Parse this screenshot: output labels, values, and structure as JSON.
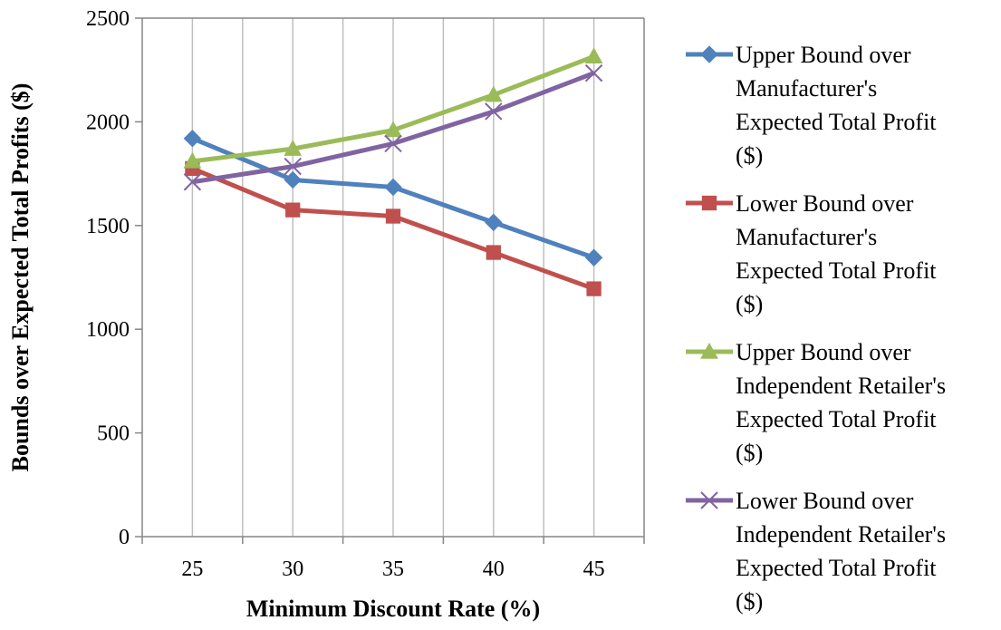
{
  "chart_data": {
    "type": "line",
    "title": "",
    "xlabel": "Minimum Discount Rate (%)",
    "ylabel": "Bounds over Expected Total Profits ($)",
    "x": [
      25,
      30,
      35,
      40,
      45
    ],
    "x_tick_labels": [
      "25",
      "30",
      "35",
      "40",
      "45"
    ],
    "ylim": [
      0,
      2500
    ],
    "y_ticks": [
      0,
      500,
      1000,
      1500,
      2000,
      2500
    ],
    "y_tick_labels": [
      "0",
      "500",
      "1000",
      "1500",
      "2000",
      "2500"
    ],
    "grid": "vertical",
    "legend_position": "right",
    "series": [
      {
        "name": "Upper Bound over Manufacturer's Expected Total Profit ($)",
        "legend_lines": [
          "Upper Bound over",
          "Manufacturer's",
          "Expected Total Profit",
          "($)"
        ],
        "marker": "diamond",
        "color": "#4F81BD",
        "values": [
          1920,
          1720,
          1685,
          1515,
          1345
        ]
      },
      {
        "name": "Lower Bound over Manufacturer's Expected Total Profit ($)",
        "legend_lines": [
          "Lower Bound over",
          "Manufacturer's",
          "Expected Total Profit",
          "($)"
        ],
        "marker": "square",
        "color": "#C0504D",
        "values": [
          1775,
          1575,
          1545,
          1370,
          1195
        ]
      },
      {
        "name": "Upper Bound over Independent Retailer's Expected Total Profit ($)",
        "legend_lines": [
          "Upper Bound over",
          "Independent Retailer's",
          "Expected Total Profit",
          "($)"
        ],
        "marker": "triangle",
        "color": "#9BBB59",
        "values": [
          1810,
          1870,
          1960,
          2130,
          2315
        ]
      },
      {
        "name": "Lower Bound over Independent Retailer's Expected Total Profit ($)",
        "legend_lines": [
          "Lower Bound over",
          "Independent Retailer's",
          "Expected Total Profit",
          "($)"
        ],
        "marker": "x",
        "color": "#8064A2",
        "values": [
          1710,
          1785,
          1895,
          2050,
          2235
        ]
      }
    ]
  }
}
